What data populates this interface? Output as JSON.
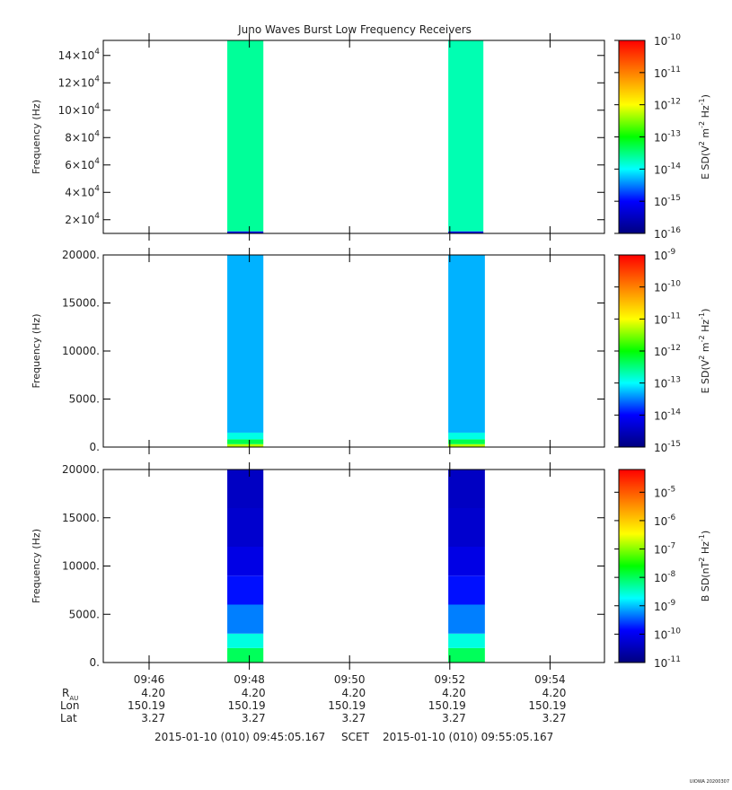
{
  "title": "Juno Waves Burst Low Frequency Receivers",
  "time_axis": {
    "xlim": [
      45.086,
      55.086
    ],
    "xticks": [
      {
        "value": 46,
        "label": "09:46"
      },
      {
        "value": 48,
        "label": "09:48"
      },
      {
        "value": 50,
        "label": "09:50"
      },
      {
        "value": 52,
        "label": "09:52"
      },
      {
        "value": 54,
        "label": "09:54"
      }
    ]
  },
  "colormap": [
    "#00007f",
    "#0000ff",
    "#00ffff",
    "#00ff00",
    "#ffff00",
    "#ff8000",
    "#ff0000"
  ],
  "chart_data": [
    {
      "type": "spectrogram",
      "ylabel": "Frequency (Hz)",
      "ylim": [
        10000,
        151000
      ],
      "yticks": [
        {
          "value": 20000,
          "mantissa": "2×10",
          "exponent": "4"
        },
        {
          "value": 40000,
          "mantissa": "4×10",
          "exponent": "4"
        },
        {
          "value": 60000,
          "mantissa": "6×10",
          "exponent": "4"
        },
        {
          "value": 80000,
          "mantissa": "8×10",
          "exponent": "4"
        },
        {
          "value": 100000,
          "mantissa": "10×10",
          "exponent": "4"
        },
        {
          "value": 120000,
          "mantissa": "12×10",
          "exponent": "4"
        },
        {
          "value": 140000,
          "mantissa": "14×10",
          "exponent": "4"
        }
      ],
      "zlim": [
        -16,
        -10
      ],
      "zticks": [
        {
          "value": -16,
          "base": "10",
          "exponent": "-16"
        },
        {
          "value": -15,
          "base": "10",
          "exponent": "-15"
        },
        {
          "value": -14,
          "base": "10",
          "exponent": "-14"
        },
        {
          "value": -13,
          "base": "10",
          "exponent": "-13"
        },
        {
          "value": -12,
          "base": "10",
          "exponent": "-12"
        },
        {
          "value": -11,
          "base": "10",
          "exponent": "-11"
        },
        {
          "value": -10,
          "base": "10",
          "exponent": "-10"
        }
      ],
      "zlabel": [
        {
          "text": "E SD(V"
        },
        {
          "sup": "2"
        },
        {
          "text": " m"
        },
        {
          "sup": "-2"
        },
        {
          "text": " Hz"
        },
        {
          "sup": "-1"
        },
        {
          "text": ")"
        }
      ],
      "bursts": [
        {
          "start": 47.56,
          "end": 48.28,
          "freq": [
            10000,
            11500,
            151000
          ],
          "level": [
            -15.2,
            -13.6
          ]
        },
        {
          "start": 51.97,
          "end": 52.67,
          "freq": [
            10000,
            11500,
            151000
          ],
          "level": [
            -15.2,
            -13.7
          ]
        }
      ]
    },
    {
      "type": "spectrogram",
      "ylabel": "Frequency (Hz)",
      "ylim": [
        0,
        20000
      ],
      "yticks": [
        {
          "value": 0,
          "label": "0."
        },
        {
          "value": 5000,
          "label": "5000."
        },
        {
          "value": 10000,
          "label": "10000."
        },
        {
          "value": 15000,
          "label": "15000."
        },
        {
          "value": 20000,
          "label": "20000."
        }
      ],
      "zlim": [
        -15,
        -9
      ],
      "zticks": [
        {
          "value": -15,
          "base": "10",
          "exponent": "-15"
        },
        {
          "value": -14,
          "base": "10",
          "exponent": "-14"
        },
        {
          "value": -13,
          "base": "10",
          "exponent": "-13"
        },
        {
          "value": -12,
          "base": "10",
          "exponent": "-12"
        },
        {
          "value": -11,
          "base": "10",
          "exponent": "-11"
        },
        {
          "value": -10,
          "base": "10",
          "exponent": "-10"
        },
        {
          "value": -9,
          "base": "10",
          "exponent": "-9"
        }
      ],
      "zlabel": [
        {
          "text": "E SD(V"
        },
        {
          "sup": "2"
        },
        {
          "text": " m"
        },
        {
          "sup": "-2"
        },
        {
          "text": " Hz"
        },
        {
          "sup": "-1"
        },
        {
          "text": ")"
        }
      ],
      "bursts": [
        {
          "start": 47.56,
          "end": 48.28,
          "freq": [
            0,
            300,
            800,
            1500,
            20000
          ],
          "level": [
            -11.3,
            -12.3,
            -12.9,
            -13.3
          ]
        },
        {
          "start": 51.97,
          "end": 52.7,
          "freq": [
            0,
            300,
            800,
            1500,
            20000
          ],
          "level": [
            -11.3,
            -12.3,
            -12.9,
            -13.3
          ]
        }
      ]
    },
    {
      "type": "spectrogram",
      "ylabel": "Frequency (Hz)",
      "ylim": [
        0,
        20000
      ],
      "yticks": [
        {
          "value": 0,
          "label": "0."
        },
        {
          "value": 5000,
          "label": "5000."
        },
        {
          "value": 10000,
          "label": "10000."
        },
        {
          "value": 15000,
          "label": "15000."
        },
        {
          "value": 20000,
          "label": "20000."
        }
      ],
      "zlim": [
        -11,
        -4.2
      ],
      "zticks": [
        {
          "value": -11,
          "base": "10",
          "exponent": "-11"
        },
        {
          "value": -10,
          "base": "10",
          "exponent": "-10"
        },
        {
          "value": -9,
          "base": "10",
          "exponent": "-9"
        },
        {
          "value": -8,
          "base": "10",
          "exponent": "-8"
        },
        {
          "value": -7,
          "base": "10",
          "exponent": "-7"
        },
        {
          "value": -6,
          "base": "10",
          "exponent": "-6"
        },
        {
          "value": -5,
          "base": "10",
          "exponent": "-5"
        }
      ],
      "zlabel": [
        {
          "text": "B SD(nT"
        },
        {
          "sup": "2"
        },
        {
          "text": " Hz"
        },
        {
          "sup": "-1"
        },
        {
          "text": ")"
        }
      ],
      "bursts": [
        {
          "start": 47.56,
          "end": 48.28,
          "freq": [
            0,
            1500,
            3000,
            6000,
            9000,
            12000,
            16000,
            20000
          ],
          "level": [
            -8,
            -8.6,
            -9.3,
            -9.8,
            -10.1,
            -10.3,
            -10.4
          ]
        },
        {
          "start": 51.97,
          "end": 52.7,
          "freq": [
            0,
            1500,
            3000,
            6000,
            9000,
            12000,
            16000,
            20000
          ],
          "level": [
            -8,
            -8.6,
            -9.3,
            -9.8,
            -10.1,
            -10.3,
            -10.4
          ]
        }
      ]
    }
  ],
  "ephemeris": [
    {
      "label": "R",
      "sub": "AU",
      "values": [
        "4.20",
        "4.20",
        "4.20",
        "4.20",
        "4.20"
      ]
    },
    {
      "label": "Lon",
      "values": [
        "150.19",
        "150.19",
        "150.19",
        "150.19",
        "150.19"
      ]
    },
    {
      "label": "Lat",
      "values": [
        "3.27",
        "3.27",
        "3.27",
        "3.27",
        "3.27"
      ]
    }
  ],
  "footer": {
    "start": "2015-01-10 (010) 09:45:05.167",
    "middle": "SCET",
    "end": "2015-01-10 (010) 09:55:05.167"
  },
  "credit": "UIOWA 20200307"
}
